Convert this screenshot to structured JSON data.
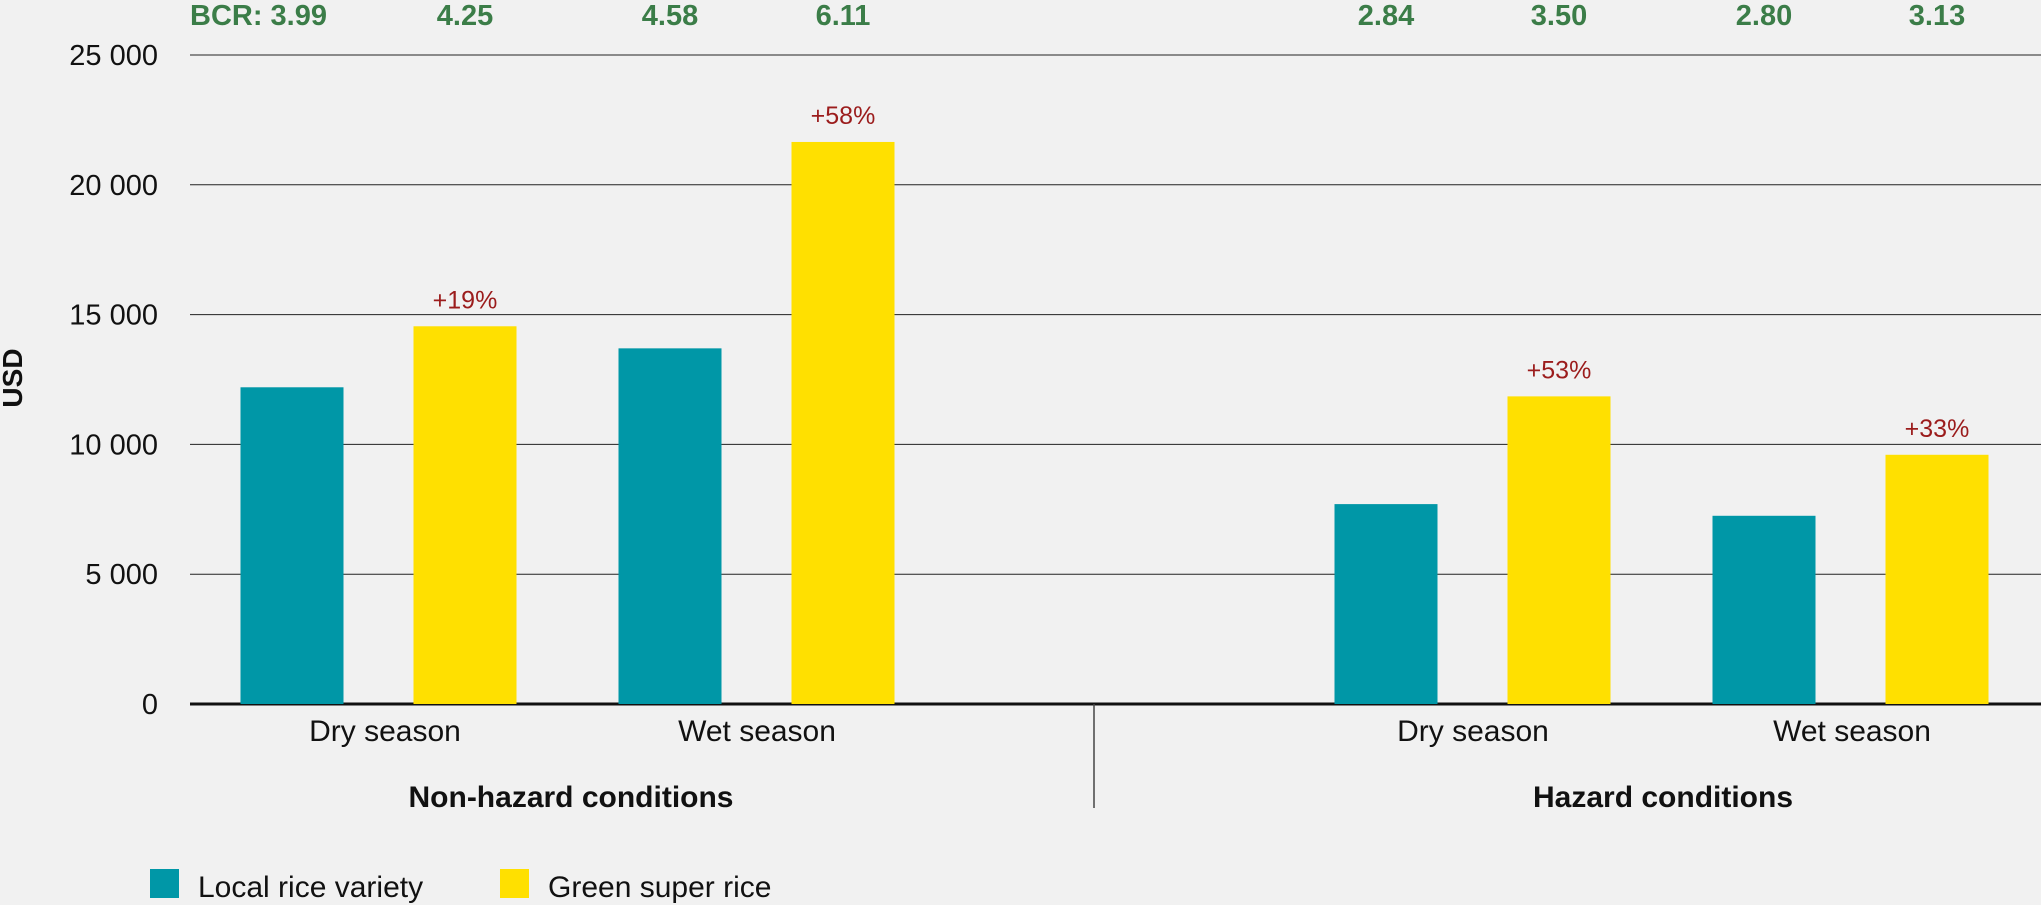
{
  "chart_data": {
    "type": "bar",
    "ylabel": "USD",
    "ylim": [
      0,
      25000
    ],
    "yticks": [
      0,
      5000,
      10000,
      15000,
      20000,
      25000
    ],
    "ytick_labels": [
      "0",
      "5 000",
      "10 000",
      "15 000",
      "20 000",
      "25 000"
    ],
    "grid": true,
    "legend_position": "bottom-left",
    "series": [
      {
        "name": "Local rice variety",
        "color": "#0097a7"
      },
      {
        "name": "Green super rice",
        "color": "#ffe000"
      }
    ],
    "groups": [
      {
        "label": "Non-hazard conditions",
        "categories": [
          {
            "label": "Dry season",
            "values": [
              12200,
              14550
            ],
            "bcr": [
              "BCR: 3.99",
              "4.25"
            ],
            "change": "+19%"
          },
          {
            "label": "Wet season",
            "values": [
              13700,
              21650
            ],
            "bcr": [
              "4.58",
              "6.11"
            ],
            "change": "+58%"
          }
        ]
      },
      {
        "label": "Hazard conditions",
        "categories": [
          {
            "label": "Dry season",
            "values": [
              7700,
              11850
            ],
            "bcr": [
              "2.84",
              "3.50"
            ],
            "change": "+53%"
          },
          {
            "label": "Wet season",
            "values": [
              7250,
              9600
            ],
            "bcr": [
              "2.80",
              "3.13"
            ],
            "change": "+33%"
          }
        ]
      }
    ]
  }
}
